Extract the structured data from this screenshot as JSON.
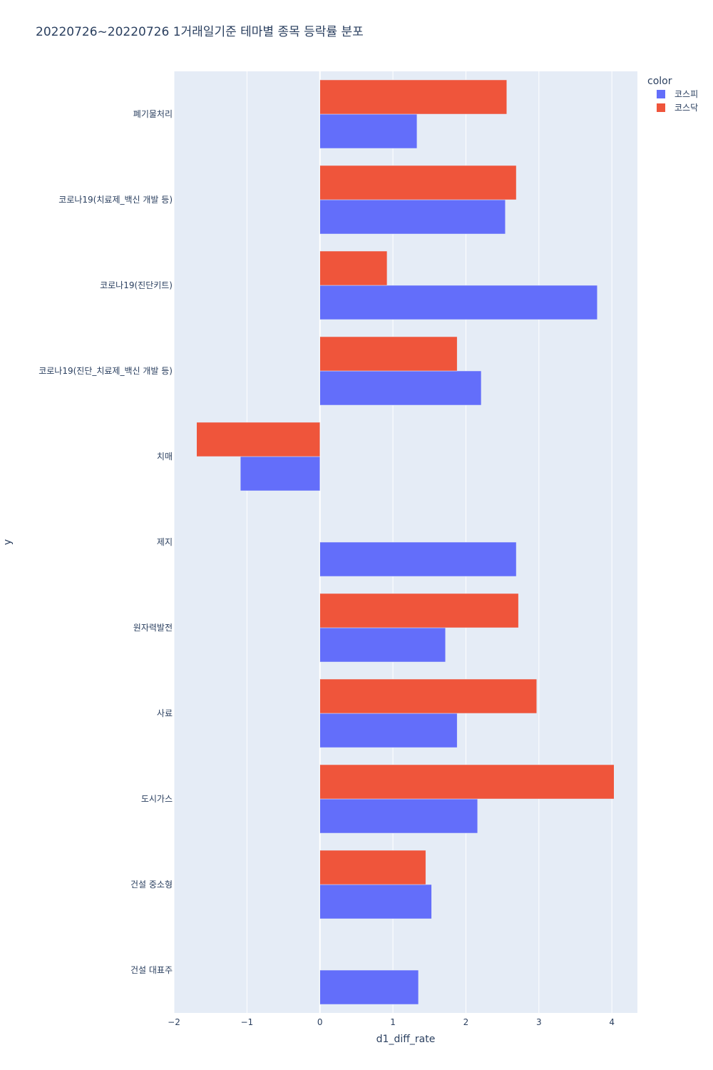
{
  "chart_data": {
    "type": "bar",
    "orientation": "horizontal",
    "barmode": "group",
    "title": "20220726~20220726 1거래일기준 테마별 종목 등락률 분포",
    "xlabel": "d1_diff_rate",
    "ylabel": "y",
    "xlim": [
      -2,
      4.35
    ],
    "xticks": [
      -2,
      -1,
      0,
      1,
      2,
      3,
      4
    ],
    "xtick_labels": [
      "−2",
      "−1",
      "0",
      "1",
      "2",
      "3",
      "4"
    ],
    "grid": true,
    "plot_bg": "#e5ecf6",
    "categories": [
      "폐기물처리",
      "코로나19(치료제_백신 개발 등)",
      "코로나19(진단키트)",
      "코로나19(진단_치료제_백신 개발 등)",
      "치매",
      "제지",
      "원자력발전",
      "사료",
      "도시가스",
      "건설 중소형",
      "건설 대표주"
    ],
    "legend": {
      "title": "color",
      "position": "top-right"
    },
    "series": [
      {
        "name": "코스피",
        "color": "#636efa",
        "values": [
          1.33,
          2.54,
          3.8,
          2.21,
          -1.09,
          2.69,
          1.72,
          1.88,
          2.16,
          1.53,
          1.35
        ]
      },
      {
        "name": "코스닥",
        "color": "#ef553b",
        "values": [
          2.56,
          2.69,
          0.92,
          1.88,
          -1.69,
          null,
          2.72,
          2.97,
          4.03,
          1.45,
          null
        ]
      }
    ]
  }
}
